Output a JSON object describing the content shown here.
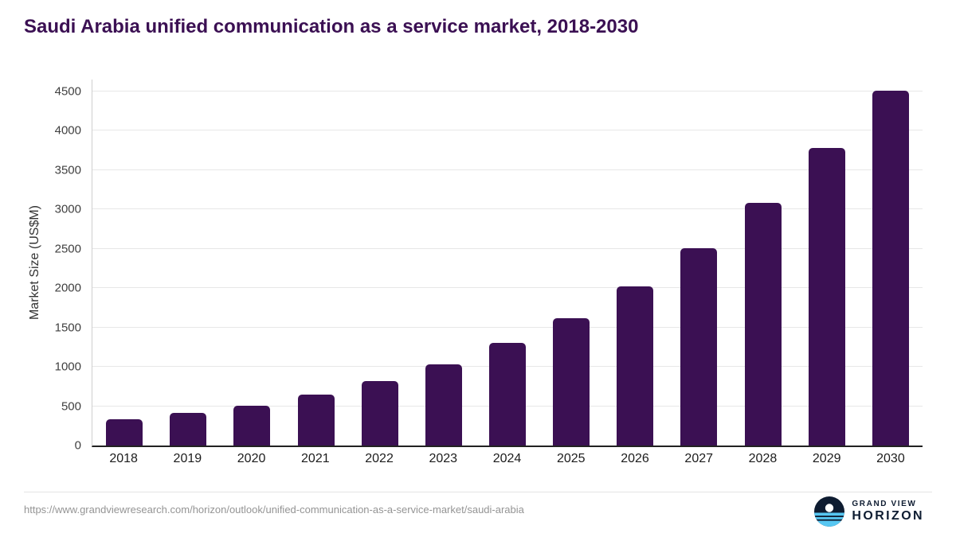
{
  "title": "Saudi Arabia unified communication as a service market, 2018-2030",
  "chart_data": {
    "type": "bar",
    "title": "Saudi Arabia unified communication as a service market, 2018-2030",
    "categories": [
      "2018",
      "2019",
      "2020",
      "2021",
      "2022",
      "2023",
      "2024",
      "2025",
      "2026",
      "2027",
      "2028",
      "2029",
      "2030"
    ],
    "values": [
      330,
      410,
      510,
      650,
      820,
      1030,
      1300,
      1620,
      2020,
      2510,
      3080,
      3780,
      4510
    ],
    "xlabel": "",
    "ylabel": "Market Size (US$M)",
    "ylim": [
      0,
      4500
    ],
    "yticks": [
      0,
      500,
      1000,
      1500,
      2000,
      2500,
      3000,
      3500,
      4000,
      4500
    ],
    "bar_color": "#3b1053",
    "grid": true,
    "legend": false
  },
  "footer": {
    "source_url": "https://www.grandviewresearch.com/horizon/outlook/unified-communication-as-a-service-market/saudi-arabia",
    "brand_top": "GRAND VIEW",
    "brand_bottom": "HORIZON"
  },
  "colors": {
    "bar": "#3b1053",
    "title": "#3b1053",
    "gridline": "#e7e7e7",
    "brand_navy": "#0e1c31",
    "brand_blue": "#57c7f2"
  }
}
